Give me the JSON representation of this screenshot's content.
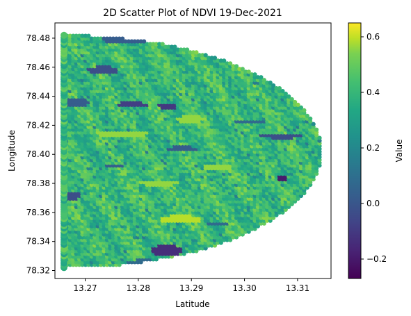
{
  "chart_data": {
    "type": "scatter",
    "title": "2D Scatter Plot of NDVI 19-Dec-2021",
    "xlabel": "Latitude",
    "ylabel": "Longitude",
    "xlim": [
      13.2643,
      13.3163
    ],
    "ylim": [
      78.3145,
      78.4905
    ],
    "xticks": [
      13.27,
      13.28,
      13.29,
      13.3,
      13.31
    ],
    "xtick_labels": [
      "13.27",
      "13.28",
      "13.29",
      "13.30",
      "13.31"
    ],
    "yticks": [
      78.32,
      78.34,
      78.36,
      78.38,
      78.4,
      78.42,
      78.44,
      78.46,
      78.48
    ],
    "ytick_labels": [
      "78.32",
      "78.34",
      "78.36",
      "78.38",
      "78.40",
      "78.42",
      "78.44",
      "78.46",
      "78.48"
    ],
    "grid": false,
    "colormap": "viridis",
    "colorbar": {
      "label": "Value",
      "range": [
        -0.27,
        0.65
      ],
      "ticks": [
        -0.2,
        0.0,
        0.2,
        0.4,
        0.6
      ],
      "tick_labels": [
        "−0.2",
        "0.0",
        "0.2",
        "0.4",
        "0.6"
      ]
    },
    "domain_shape": {
      "x_min": 13.266,
      "x_max": 13.3145,
      "y_min": 78.322,
      "y_max": 78.482,
      "y_center": 78.402,
      "dominant_range": [
        0.2,
        0.5
      ]
    },
    "low_value_patches": [
      {
        "x": 13.2735,
        "y": 78.458,
        "w": 0.003,
        "h": 0.003,
        "value": -0.05
      },
      {
        "x": 13.279,
        "y": 78.4795,
        "w": 0.006,
        "h": 0.003,
        "value": 0.0
      },
      {
        "x": 13.279,
        "y": 78.4345,
        "w": 0.003,
        "h": 0.002,
        "value": -0.1
      },
      {
        "x": 13.2855,
        "y": 78.4335,
        "w": 0.002,
        "h": 0.002,
        "value": -0.12
      },
      {
        "x": 13.307,
        "y": 78.413,
        "w": 0.004,
        "h": 0.002,
        "value": -0.05
      },
      {
        "x": 13.301,
        "y": 78.423,
        "w": 0.003,
        "h": 0.0015,
        "value": 0.05
      },
      {
        "x": 13.307,
        "y": 78.3835,
        "w": 0.001,
        "h": 0.002,
        "value": -0.2
      },
      {
        "x": 13.2855,
        "y": 78.334,
        "w": 0.003,
        "h": 0.004,
        "value": -0.15
      },
      {
        "x": 13.2675,
        "y": 78.372,
        "w": 0.002,
        "h": 0.003,
        "value": -0.05
      },
      {
        "x": 13.2755,
        "y": 78.392,
        "w": 0.002,
        "h": 0.0015,
        "value": 0.0
      },
      {
        "x": 13.268,
        "y": 78.436,
        "w": 0.003,
        "h": 0.003,
        "value": 0.0
      },
      {
        "x": 13.2885,
        "y": 78.404,
        "w": 0.003,
        "h": 0.002,
        "value": 0.0
      },
      {
        "x": 13.295,
        "y": 78.3525,
        "w": 0.002,
        "h": 0.0015,
        "value": 0.05
      },
      {
        "x": 13.281,
        "y": 78.326,
        "w": 0.003,
        "h": 0.002,
        "value": 0.05
      }
    ],
    "high_value_patches": [
      {
        "x": 13.288,
        "y": 78.3555,
        "w": 0.004,
        "h": 0.003,
        "value": 0.55
      },
      {
        "x": 13.29,
        "y": 78.4245,
        "w": 0.003,
        "h": 0.0025,
        "value": 0.5
      },
      {
        "x": 13.277,
        "y": 78.4145,
        "w": 0.005,
        "h": 0.0025,
        "value": 0.5
      },
      {
        "x": 13.284,
        "y": 78.3805,
        "w": 0.004,
        "h": 0.002,
        "value": 0.5
      },
      {
        "x": 13.295,
        "y": 78.3915,
        "w": 0.003,
        "h": 0.002,
        "value": 0.5
      }
    ]
  }
}
